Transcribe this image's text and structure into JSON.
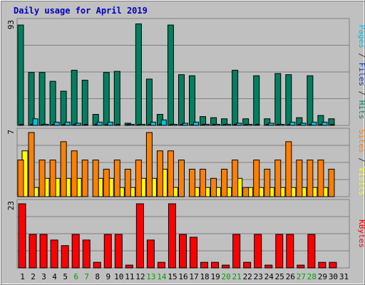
{
  "chart_data": {
    "type": "bar",
    "title": "Daily usage for April 2019",
    "categories": [
      "1",
      "2",
      "3",
      "4",
      "5",
      "6",
      "7",
      "8",
      "9",
      "10",
      "11",
      "12",
      "13",
      "14",
      "15",
      "16",
      "17",
      "18",
      "19",
      "20",
      "21",
      "22",
      "23",
      "24",
      "25",
      "26",
      "27",
      "28",
      "29",
      "30",
      "31"
    ],
    "weekend_days": [
      "6",
      "7",
      "13",
      "14",
      "20",
      "21",
      "27",
      "28"
    ],
    "panels": [
      {
        "id": "hits_files_pages",
        "y_max_label": "93",
        "ylim": [
          0,
          93
        ],
        "axis_label_parts": [
          {
            "text": "Pages",
            "color": "#00c0e0"
          },
          {
            "text": " / ",
            "color": "#303030"
          },
          {
            "text": "Files",
            "color": "#0040c0"
          },
          {
            "text": " / ",
            "color": "#303030"
          },
          {
            "text": "Hits",
            "color": "#008060"
          }
        ],
        "series": [
          {
            "name": "Hits",
            "color": "#008060",
            "values": [
              91,
              48,
              48,
              40,
              31,
              50,
              41,
              10,
              48,
              49,
              2,
              92,
              42,
              10,
              91,
              46,
              45,
              8,
              7,
              6,
              50,
              6,
              45,
              6,
              47,
              46,
              7,
              45,
              9,
              6,
              null
            ]
          },
          {
            "name": "Files",
            "color": "#0040c0",
            "values": [
              1,
              1,
              1,
              1,
              1,
              1,
              1,
              1,
              1,
              1,
              1,
              1,
              1,
              1,
              1,
              1,
              1,
              1,
              1,
              1,
              1,
              1,
              1,
              1,
              1,
              1,
              1,
              1,
              1,
              1,
              null
            ]
          },
          {
            "name": "Pages",
            "color": "#00c0e0",
            "values": [
              0,
              6,
              1,
              3,
              3,
              2,
              0,
              3,
              3,
              0,
              1,
              1,
              3,
              5,
              1,
              2,
              3,
              1,
              1,
              1,
              2,
              1,
              0,
              2,
              1,
              3,
              2,
              3,
              3,
              0,
              null
            ]
          }
        ]
      },
      {
        "id": "visits_sites",
        "y_max_label": "7",
        "ylim": [
          0,
          7
        ],
        "axis_label_parts": [
          {
            "text": "Sites",
            "color": "#ff8000"
          },
          {
            "text": " / ",
            "color": "#303030"
          },
          {
            "text": "Visits",
            "color": "#ffff00"
          }
        ],
        "series": [
          {
            "name": "Visits",
            "color": "#ffff00",
            "values": [
              5,
              1,
              2,
              2,
              2,
              2,
              0,
              2,
              2,
              1,
              1,
              2,
              2,
              3,
              1,
              0,
              1,
              1,
              1,
              1,
              2,
              1,
              1,
              1,
              1,
              1,
              1,
              1,
              1,
              0,
              null
            ]
          },
          {
            "name": "Sites",
            "color": "#ff8000",
            "values": [
              4,
              7,
              4,
              4,
              6,
              5,
              4,
              4,
              3,
              4,
              3,
              4,
              7,
              5,
              5,
              4,
              3,
              3,
              2,
              3,
              4,
              1,
              4,
              3,
              4,
              6,
              4,
              4,
              4,
              3,
              null
            ]
          }
        ]
      },
      {
        "id": "kbytes",
        "y_max_label": "23",
        "ylim": [
          0,
          23
        ],
        "axis_label_parts": [
          {
            "text": "KBytes",
            "color": "#ff0000"
          }
        ],
        "series": [
          {
            "name": "KBytes",
            "color": "#ff0000",
            "values": [
              23,
              12,
              12,
              10,
              8,
              12,
              10,
              2,
              12,
              12,
              1,
              23,
              10,
              2,
              23,
              12,
              11,
              2,
              2,
              1,
              12,
              2,
              12,
              1,
              12,
              12,
              1,
              12,
              2,
              2,
              null
            ]
          }
        ]
      }
    ]
  },
  "colors": {
    "background": "#c0c0c0",
    "title": "#0000c0",
    "weekday_label": "#000000",
    "weekend_label": "#00a000",
    "grid": "#808080"
  }
}
